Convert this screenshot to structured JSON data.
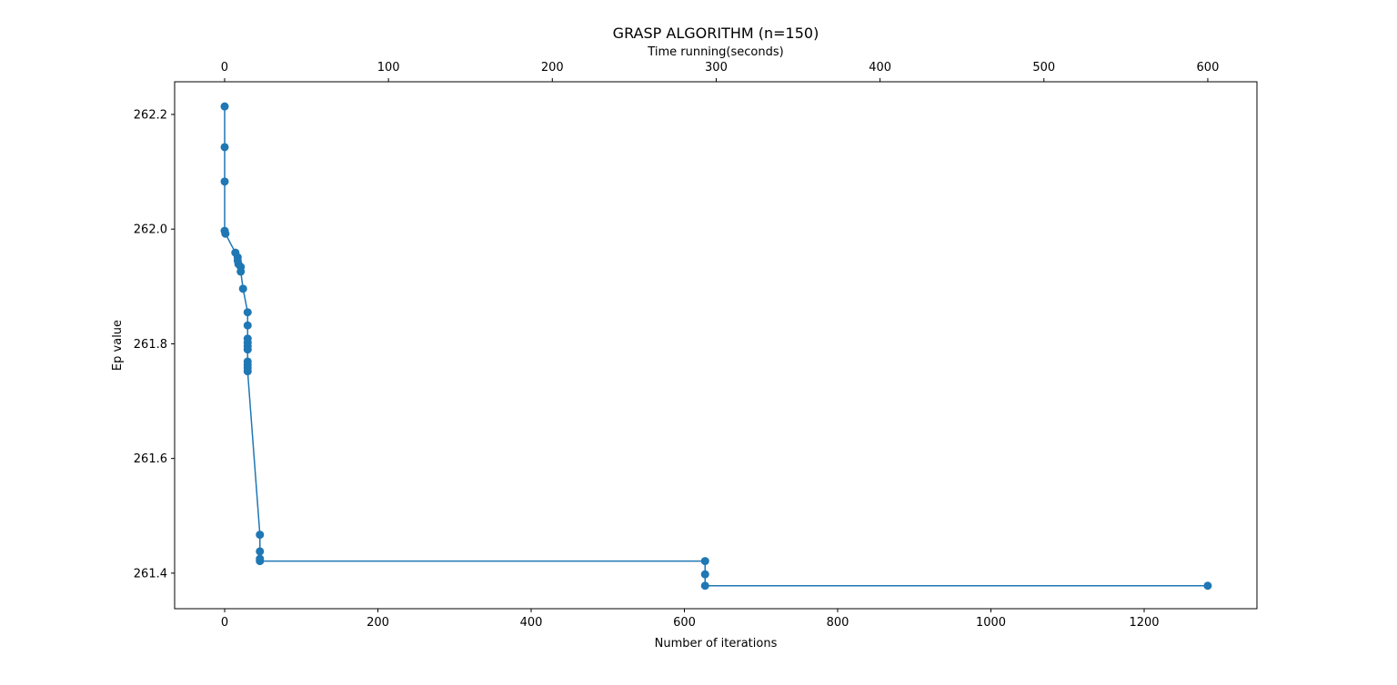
{
  "chart_data": {
    "type": "line",
    "title": "GRASP ALGORITHM (n=150)",
    "x_label": "Number of iterations",
    "x2_label": "Time running(seconds)",
    "y_label": "Ep value",
    "color": "#1f77b4",
    "marker": "circle",
    "xlim": [
      -65.3,
      1347.2
    ],
    "xticks": [
      0,
      200,
      400,
      600,
      800,
      1000,
      1200
    ],
    "x2lim": [
      -30.5,
      630
    ],
    "x2ticks": [
      0,
      100,
      200,
      300,
      400,
      500,
      600
    ],
    "ylim": [
      261.338,
      262.257
    ],
    "yticks": [
      261.4,
      261.6,
      261.8,
      {
        "value": 262,
        "label": "262.0"
      },
      262.2
    ],
    "x": [
      0,
      0,
      0,
      0,
      1,
      14,
      17,
      17,
      18,
      21,
      21,
      24,
      30,
      30,
      30,
      30,
      30,
      30,
      30,
      30,
      30,
      30,
      46,
      46,
      46,
      46,
      627,
      627,
      627,
      1283
    ],
    "values": [
      262.214,
      262.143,
      262.083,
      261.997,
      261.992,
      261.959,
      261.951,
      261.945,
      261.939,
      261.934,
      261.926,
      261.896,
      261.855,
      261.832,
      261.809,
      261.802,
      261.796,
      261.79,
      261.769,
      261.763,
      261.758,
      261.752,
      261.467,
      261.438,
      261.425,
      261.421,
      261.421,
      261.398,
      261.378,
      261.378
    ]
  }
}
